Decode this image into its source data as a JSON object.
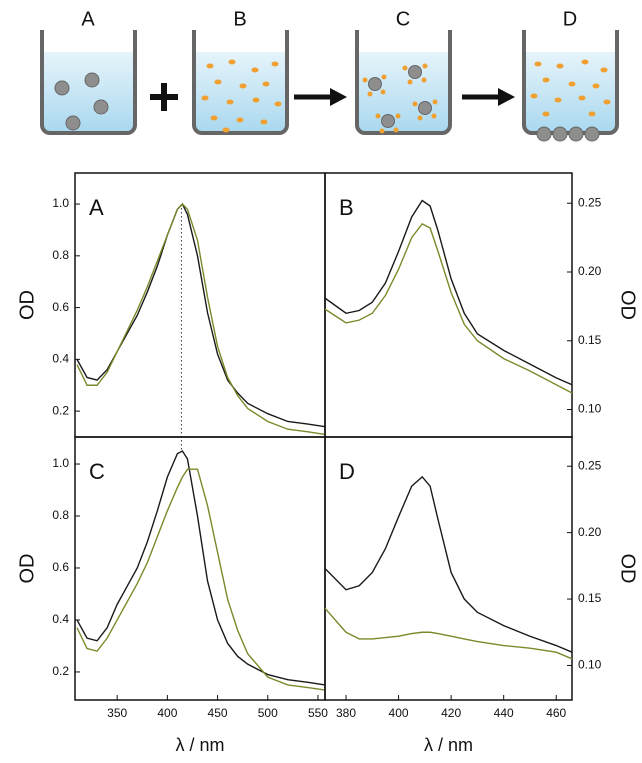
{
  "schematic": {
    "labels": [
      "A",
      "B",
      "C",
      "D"
    ]
  },
  "chart_data": [
    {
      "type": "line",
      "label": "A",
      "ylabel": "OD",
      "x": [
        310,
        320,
        330,
        340,
        350,
        360,
        370,
        380,
        390,
        400,
        410,
        415,
        420,
        430,
        440,
        450,
        460,
        470,
        480,
        500,
        520,
        540,
        557
      ],
      "series": [
        {
          "color": "#1a1a1a",
          "values": [
            0.4,
            0.33,
            0.32,
            0.36,
            0.43,
            0.5,
            0.57,
            0.66,
            0.76,
            0.88,
            0.98,
            1.0,
            0.96,
            0.8,
            0.58,
            0.42,
            0.32,
            0.27,
            0.23,
            0.19,
            0.16,
            0.15,
            0.14
          ]
        },
        {
          "color": "#7a8a2a",
          "values": [
            0.38,
            0.3,
            0.3,
            0.35,
            0.43,
            0.51,
            0.59,
            0.68,
            0.78,
            0.88,
            0.98,
            1.0,
            0.98,
            0.86,
            0.64,
            0.45,
            0.33,
            0.26,
            0.21,
            0.16,
            0.13,
            0.12,
            0.11
          ]
        }
      ],
      "xlim": [
        308,
        557
      ],
      "ylim": [
        0.1,
        1.12
      ],
      "yticks": [
        0.2,
        0.4,
        0.6,
        0.8,
        {
          "value": 1,
          "label": "1.0"
        }
      ],
      "marker_x": 414
    },
    {
      "type": "line",
      "label": "B",
      "ylabel": "OD",
      "x": [
        372,
        380,
        385,
        390,
        395,
        400,
        405,
        409,
        412,
        415,
        420,
        425,
        430,
        440,
        450,
        460,
        466
      ],
      "series": [
        {
          "color": "#1a1a1a",
          "values": [
            0.181,
            0.17,
            0.172,
            0.178,
            0.192,
            0.215,
            0.24,
            0.252,
            0.248,
            0.23,
            0.195,
            0.17,
            0.155,
            0.143,
            0.133,
            0.123,
            0.118
          ]
        },
        {
          "color": "#7a8a2a",
          "values": [
            0.173,
            0.163,
            0.165,
            0.17,
            0.183,
            0.202,
            0.225,
            0.235,
            0.232,
            0.215,
            0.185,
            0.162,
            0.15,
            0.137,
            0.128,
            0.118,
            0.112
          ]
        }
      ],
      "xlim": [
        372,
        466
      ],
      "ylim": [
        0.08,
        0.272
      ],
      "yticks": [
        {
          "value": 0.1,
          "label": "0.10"
        },
        0.15,
        {
          "value": 0.2,
          "label": "0.20"
        },
        0.25
      ]
    },
    {
      "type": "line",
      "label": "C",
      "ylabel": "OD",
      "xlabel": "λ / nm",
      "x": [
        310,
        320,
        330,
        340,
        350,
        360,
        370,
        380,
        390,
        400,
        410,
        415,
        420,
        430,
        440,
        450,
        460,
        470,
        480,
        500,
        520,
        540,
        557
      ],
      "series": [
        {
          "color": "#1a1a1a",
          "values": [
            0.4,
            0.33,
            0.32,
            0.37,
            0.46,
            0.53,
            0.6,
            0.7,
            0.82,
            0.95,
            1.04,
            1.05,
            1.02,
            0.8,
            0.55,
            0.4,
            0.31,
            0.26,
            0.23,
            0.19,
            0.17,
            0.16,
            0.15
          ]
        },
        {
          "color": "#7a8a2a",
          "values": [
            0.37,
            0.29,
            0.28,
            0.33,
            0.4,
            0.47,
            0.54,
            0.62,
            0.72,
            0.82,
            0.91,
            0.95,
            0.98,
            0.98,
            0.84,
            0.66,
            0.48,
            0.36,
            0.27,
            0.18,
            0.15,
            0.14,
            0.13
          ]
        }
      ],
      "xlim": [
        308,
        557
      ],
      "ylim": [
        0.092,
        1.104
      ],
      "xticks": [
        350,
        400,
        450,
        500,
        550
      ],
      "yticks": [
        0.2,
        0.4,
        0.6,
        0.8,
        {
          "value": 1,
          "label": "1.0"
        }
      ]
    },
    {
      "type": "line",
      "label": "D",
      "ylabel": "OD",
      "xlabel": "λ / nm",
      "x": [
        372,
        380,
        385,
        390,
        395,
        400,
        405,
        409,
        412,
        415,
        420,
        425,
        430,
        440,
        450,
        460,
        466
      ],
      "series": [
        {
          "color": "#1a1a1a",
          "values": [
            0.173,
            0.157,
            0.16,
            0.17,
            0.188,
            0.212,
            0.235,
            0.242,
            0.235,
            0.21,
            0.17,
            0.15,
            0.14,
            0.13,
            0.122,
            0.115,
            0.11
          ]
        },
        {
          "color": "#7a8a2a",
          "values": [
            0.143,
            0.125,
            0.12,
            0.12,
            0.121,
            0.122,
            0.124,
            0.125,
            0.125,
            0.124,
            0.122,
            0.12,
            0.118,
            0.115,
            0.113,
            0.11,
            0.105
          ]
        }
      ],
      "xlim": [
        372,
        466
      ],
      "ylim": [
        0.074,
        0.272
      ],
      "xticks": [
        380,
        400,
        420,
        440,
        460
      ],
      "yticks": [
        {
          "value": 0.1,
          "label": "0.10"
        },
        0.15,
        {
          "value": 0.2,
          "label": "0.20"
        },
        0.25
      ]
    }
  ]
}
